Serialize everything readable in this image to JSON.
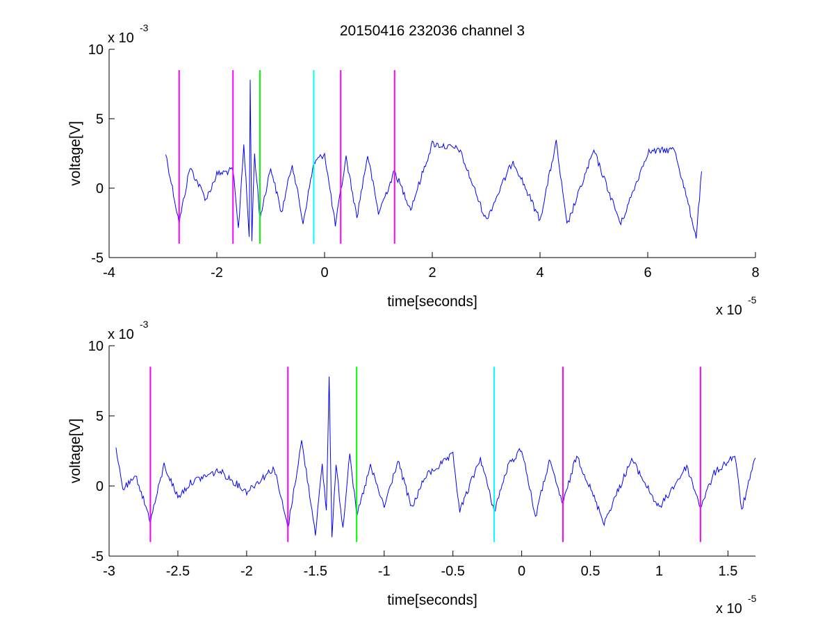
{
  "chart_data": [
    {
      "type": "line",
      "title": "20150416 232036 channel 3",
      "xlabel": "time[seconds]",
      "ylabel": "voltage[V]",
      "xlim": [
        -4e-05,
        8e-05
      ],
      "ylim": [
        -0.005,
        0.01
      ],
      "x_ticks": [
        -4e-05,
        -2e-05,
        0,
        2e-05,
        4e-05,
        6e-05,
        8e-05
      ],
      "x_tick_labels": [
        "-4",
        "-2",
        "0",
        "2",
        "4",
        "6",
        "8"
      ],
      "y_ticks": [
        -0.005,
        0,
        0.005,
        0.01
      ],
      "y_tick_labels": [
        "-5",
        "0",
        "5",
        "10"
      ],
      "x_multiplier": {
        "base": "x 10",
        "exp": "-5"
      },
      "y_multiplier": {
        "base": "x 10",
        "exp": "-3"
      },
      "grid": false,
      "series": [
        {
          "color": "#0000ff",
          "x": [
            -2.95e-05,
            -2.7e-05,
            -2.5e-05,
            -2.2e-05,
            -2e-05,
            -1.7e-05,
            -1.6e-05,
            -1.5e-05,
            -1.4e-05,
            -1.38e-05,
            -1.35e-05,
            -1.3e-05,
            -1.2e-05,
            -1e-05,
            -8e-06,
            -6e-06,
            -4e-06,
            -2e-06,
            0,
            2e-06,
            4e-06,
            6e-06,
            8e-06,
            1e-05,
            1.3e-05,
            1.6e-05,
            2e-05,
            2.5e-05,
            3e-05,
            3.5e-05,
            4e-05,
            4.3e-05,
            4.5e-05,
            5e-05,
            5.5e-05,
            6e-05,
            6.5e-05,
            6.9e-05,
            7e-05
          ],
          "y": [
            0.0025,
            -0.0025,
            0.0015,
            -0.0008,
            0.001,
            0.0013,
            -0.003,
            0.0032,
            -0.0035,
            0.0077,
            -0.0036,
            0.0025,
            -0.0022,
            0.0015,
            -0.0018,
            0.0018,
            -0.0025,
            0.0018,
            0.0025,
            -0.0027,
            0.0022,
            -0.0021,
            0.0024,
            -0.0018,
            0.0012,
            -0.0015,
            0.0032,
            0.0028,
            -0.0023,
            0.002,
            -0.0023,
            0.0033,
            -0.0027,
            0.0027,
            -0.0026,
            0.0026,
            0.0028,
            -0.0035,
            0.0012
          ]
        },
        {
          "color": "#ff00ff",
          "x": [
            -2.7e-05,
            -2.7e-05
          ],
          "y": [
            -0.004,
            0.0085
          ]
        },
        {
          "color": "#ff00ff",
          "x": [
            -1.7e-05,
            -1.7e-05
          ],
          "y": [
            -0.004,
            0.0085
          ]
        },
        {
          "color": "#00ff00",
          "x": [
            -1.2e-05,
            -1.2e-05
          ],
          "y": [
            -0.004,
            0.0085
          ]
        },
        {
          "color": "#00ffff",
          "x": [
            -2e-06,
            -2e-06
          ],
          "y": [
            -0.004,
            0.0085
          ]
        },
        {
          "color": "#ff00ff",
          "x": [
            3e-06,
            3e-06
          ],
          "y": [
            -0.004,
            0.0085
          ]
        },
        {
          "color": "#ff00ff",
          "x": [
            1.3e-05,
            1.3e-05
          ],
          "y": [
            -0.004,
            0.0085
          ]
        }
      ]
    },
    {
      "type": "line",
      "title": "",
      "xlabel": "time[seconds]",
      "ylabel": "voltage[V]",
      "xlim": [
        -3e-05,
        1.7e-05
      ],
      "ylim": [
        -0.005,
        0.01
      ],
      "x_ticks": [
        -3e-05,
        -2.5e-05,
        -2e-05,
        -1.5e-05,
        -1e-05,
        -5e-06,
        0,
        5e-06,
        1e-05,
        1.5e-05
      ],
      "x_tick_labels": [
        "-3",
        "-2.5",
        "-2",
        "-1.5",
        "-1",
        "-0.5",
        "0",
        "0.5",
        "1",
        "1.5"
      ],
      "y_ticks": [
        -0.005,
        0,
        0.005,
        0.01
      ],
      "y_tick_labels": [
        "-5",
        "0",
        "5",
        "10"
      ],
      "x_multiplier": {
        "base": "x 10",
        "exp": "-5"
      },
      "y_multiplier": {
        "base": "x 10",
        "exp": "-3"
      },
      "grid": false,
      "series": [
        {
          "color": "#0000ff",
          "x": [
            -2.95e-05,
            -2.9e-05,
            -2.8e-05,
            -2.7e-05,
            -2.6e-05,
            -2.5e-05,
            -2.4e-05,
            -2.2e-05,
            -2e-05,
            -1.8e-05,
            -1.7e-05,
            -1.6e-05,
            -1.5e-05,
            -1.45e-05,
            -1.42e-05,
            -1.4e-05,
            -1.38e-05,
            -1.35e-05,
            -1.3e-05,
            -1.25e-05,
            -1.2e-05,
            -1.1e-05,
            -1e-05,
            -9e-06,
            -8e-06,
            -7e-06,
            -5e-06,
            -4.5e-06,
            -3e-06,
            -2e-06,
            -1e-06,
            0,
            1e-06,
            2e-06,
            3e-06,
            4e-06,
            6e-06,
            8e-06,
            1e-05,
            1.2e-05,
            1.3e-05,
            1.4e-05,
            1.55e-05,
            1.6e-05,
            1.7e-05
          ],
          "y": [
            0.0025,
            -0.0002,
            0.0006,
            -0.0025,
            0.0015,
            -0.0008,
            0.0003,
            0.0011,
            -0.0004,
            0.0013,
            -0.003,
            0.0032,
            -0.0033,
            0.0014,
            -0.0018,
            0.0077,
            -0.0036,
            0.0015,
            -0.003,
            0.0025,
            -0.0022,
            0.0014,
            -0.0015,
            0.0018,
            -0.0016,
            0.0007,
            0.0022,
            -0.0018,
            0.002,
            -0.0018,
            0.0014,
            0.0027,
            -0.0022,
            0.0018,
            -0.0013,
            0.0022,
            -0.0026,
            0.0019,
            -0.0016,
            0.0014,
            -0.0015,
            0.0009,
            0.0022,
            -0.0017,
            0.002
          ]
        },
        {
          "color": "#ff00ff",
          "x": [
            -2.7e-05,
            -2.7e-05
          ],
          "y": [
            -0.004,
            0.0085
          ]
        },
        {
          "color": "#ff00ff",
          "x": [
            -1.7e-05,
            -1.7e-05
          ],
          "y": [
            -0.004,
            0.0085
          ]
        },
        {
          "color": "#00ff00",
          "x": [
            -1.2e-05,
            -1.2e-05
          ],
          "y": [
            -0.004,
            0.0085
          ]
        },
        {
          "color": "#00ffff",
          "x": [
            -2e-06,
            -2e-06
          ],
          "y": [
            -0.004,
            0.0085
          ]
        },
        {
          "color": "#ff00ff",
          "x": [
            3e-06,
            3e-06
          ],
          "y": [
            -0.004,
            0.0085
          ]
        },
        {
          "color": "#ff00ff",
          "x": [
            1.3e-05,
            1.3e-05
          ],
          "y": [
            -0.004,
            0.0085
          ]
        }
      ]
    }
  ]
}
